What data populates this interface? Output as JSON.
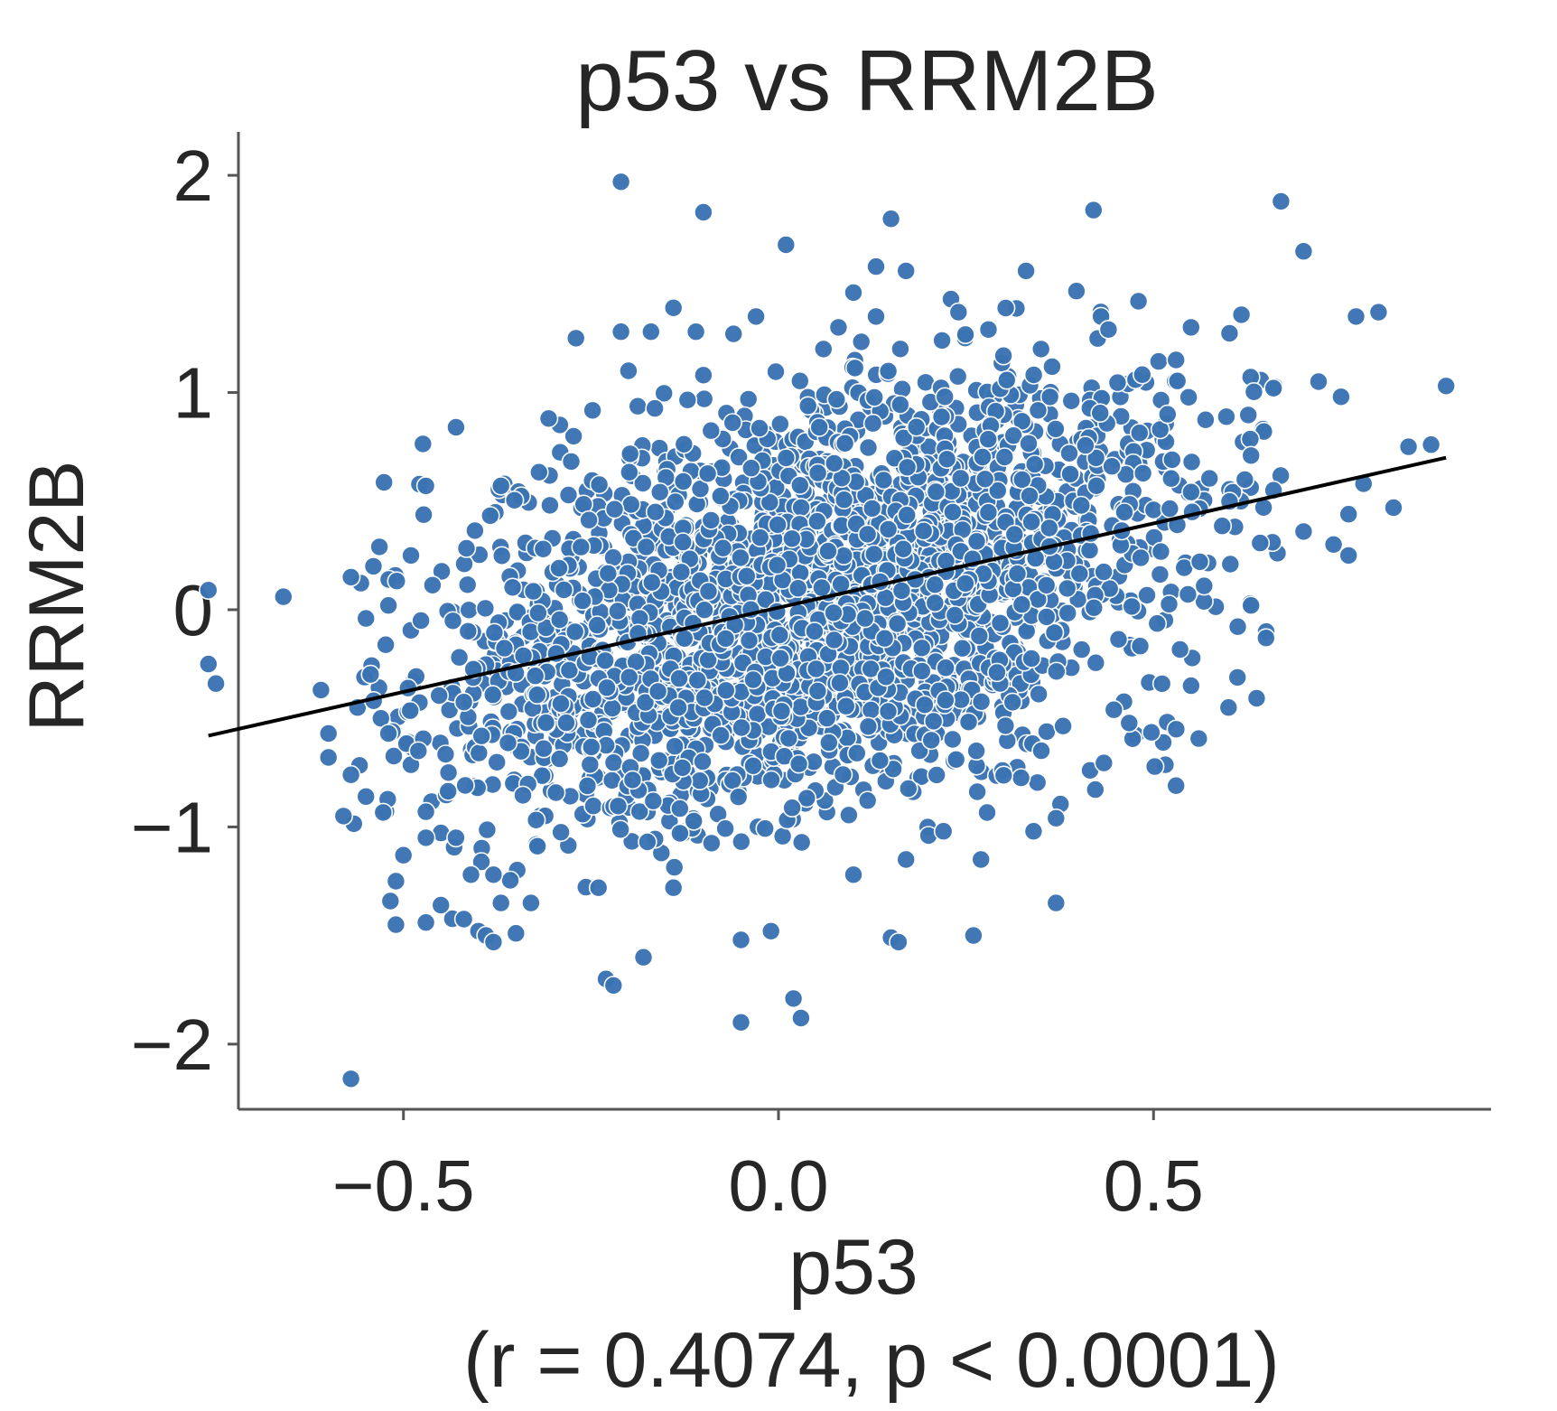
{
  "chart_data": {
    "type": "scatter",
    "title": "p53 vs RRM2B",
    "xlabel": "p53",
    "ylabel": "RRM2B",
    "stats_label": "(r = 0.4074, p < 0.0001)",
    "xlim": [
      -0.72,
      0.95
    ],
    "ylim": [
      -2.3,
      2.2
    ],
    "xticks": [
      -0.5,
      0.0,
      0.5
    ],
    "xtick_labels": [
      "−0.5",
      "0.0",
      "0.5"
    ],
    "yticks": [
      2,
      1,
      0,
      -1,
      -2
    ],
    "ytick_labels": [
      "2",
      "1",
      "0",
      "−1",
      "−2"
    ],
    "grid": false,
    "legend": "none",
    "point_color": "#3a73b2",
    "fit_line_color": "#000000",
    "n_bulk_points": 2600,
    "fit_line": {
      "x": [
        -0.76,
        0.89
      ],
      "y": [
        -0.58,
        0.7
      ]
    },
    "points": [
      [
        -0.76,
        0.09
      ],
      [
        -0.76,
        -0.25
      ],
      [
        -0.75,
        -0.34
      ],
      [
        -0.66,
        0.06
      ],
      [
        -0.61,
        -0.37
      ],
      [
        -0.6,
        -0.57
      ],
      [
        -0.6,
        -0.68
      ],
      [
        -0.58,
        -0.95
      ],
      [
        -0.57,
        -2.16
      ],
      [
        -0.57,
        0.15
      ],
      [
        -0.57,
        -0.76
      ],
      [
        -0.55,
        -0.86
      ],
      [
        -0.55,
        -0.04
      ],
      [
        -0.54,
        0.2
      ],
      [
        -0.53,
        -0.5
      ],
      [
        -0.52,
        -0.57
      ],
      [
        -0.52,
        0.02
      ],
      [
        -0.51,
        -1.45
      ],
      [
        -0.51,
        -1.25
      ],
      [
        -0.5,
        -1.13
      ],
      [
        -0.49,
        0.25
      ],
      [
        -0.48,
        -0.65
      ],
      [
        -0.47,
        -0.93
      ],
      [
        -0.47,
        -1.05
      ],
      [
        -0.47,
        -1.44
      ],
      [
        -0.47,
        0.57
      ],
      [
        -0.45,
        -1.36
      ],
      [
        -0.44,
        -0.75
      ],
      [
        -0.43,
        -1.05
      ],
      [
        -0.43,
        0.84
      ],
      [
        -0.41,
        -1.22
      ],
      [
        -0.4,
        -1.48
      ],
      [
        -0.39,
        -1.5
      ],
      [
        -0.38,
        -1.53
      ],
      [
        -0.38,
        -1.22
      ],
      [
        -0.37,
        -1.35
      ],
      [
        -0.37,
        0.57
      ],
      [
        -0.35,
        -1.49
      ],
      [
        -0.33,
        -1.35
      ],
      [
        -0.31,
        -0.52
      ],
      [
        -0.27,
        1.25
      ],
      [
        -0.24,
        -1.28
      ],
      [
        -0.23,
        -1.7
      ],
      [
        -0.22,
        -1.73
      ],
      [
        -0.21,
        1.97
      ],
      [
        -0.21,
        1.28
      ],
      [
        -0.2,
        1.1
      ],
      [
        -0.18,
        -1.6
      ],
      [
        -0.17,
        1.28
      ],
      [
        -0.14,
        1.39
      ],
      [
        -0.14,
        -1.28
      ],
      [
        -0.11,
        1.28
      ],
      [
        -0.1,
        1.83
      ],
      [
        -0.1,
        1.08
      ],
      [
        -0.06,
        1.27
      ],
      [
        -0.05,
        -1.9
      ],
      [
        -0.05,
        -1.52
      ],
      [
        -0.03,
        1.35
      ],
      [
        -0.01,
        -1.48
      ],
      [
        0.01,
        1.68
      ],
      [
        0.02,
        -1.79
      ],
      [
        0.03,
        -1.88
      ],
      [
        0.06,
        1.2
      ],
      [
        0.08,
        1.3
      ],
      [
        0.1,
        1.46
      ],
      [
        0.1,
        -1.22
      ],
      [
        0.13,
        1.58
      ],
      [
        0.13,
        1.35
      ],
      [
        0.15,
        1.8
      ],
      [
        0.15,
        -1.51
      ],
      [
        0.16,
        -1.53
      ],
      [
        0.17,
        1.56
      ],
      [
        0.17,
        -1.15
      ],
      [
        0.2,
        -1.04
      ],
      [
        0.22,
        -1.02
      ],
      [
        0.23,
        1.43
      ],
      [
        0.24,
        1.37
      ],
      [
        0.26,
        -1.5
      ],
      [
        0.27,
        -1.15
      ],
      [
        0.28,
        1.29
      ],
      [
        0.3,
        1.17
      ],
      [
        0.33,
        1.56
      ],
      [
        0.34,
        -1.02
      ],
      [
        0.35,
        1.2
      ],
      [
        0.37,
        -1.35
      ],
      [
        0.37,
        -0.96
      ],
      [
        0.42,
        1.84
      ],
      [
        0.43,
        1.35
      ],
      [
        0.44,
        1.29
      ],
      [
        0.48,
        1.42
      ],
      [
        0.53,
        1.15
      ],
      [
        0.53,
        -0.81
      ],
      [
        0.55,
        1.3
      ],
      [
        0.55,
        -0.35
      ],
      [
        0.6,
        -0.45
      ],
      [
        0.63,
        0.71
      ],
      [
        0.65,
        -0.13
      ],
      [
        0.66,
        1.02
      ],
      [
        0.67,
        1.88
      ],
      [
        0.7,
        1.65
      ],
      [
        0.72,
        1.05
      ],
      [
        0.75,
        0.98
      ],
      [
        0.76,
        0.44
      ],
      [
        0.76,
        0.25
      ],
      [
        0.77,
        1.35
      ],
      [
        0.78,
        0.58
      ],
      [
        0.8,
        1.37
      ],
      [
        0.82,
        0.47
      ],
      [
        0.84,
        0.75
      ],
      [
        0.87,
        0.76
      ],
      [
        0.89,
        1.03
      ],
      [
        0.66,
        0.55
      ],
      [
        0.7,
        0.36
      ],
      [
        0.74,
        0.3
      ],
      [
        0.63,
        0.02
      ]
    ]
  }
}
